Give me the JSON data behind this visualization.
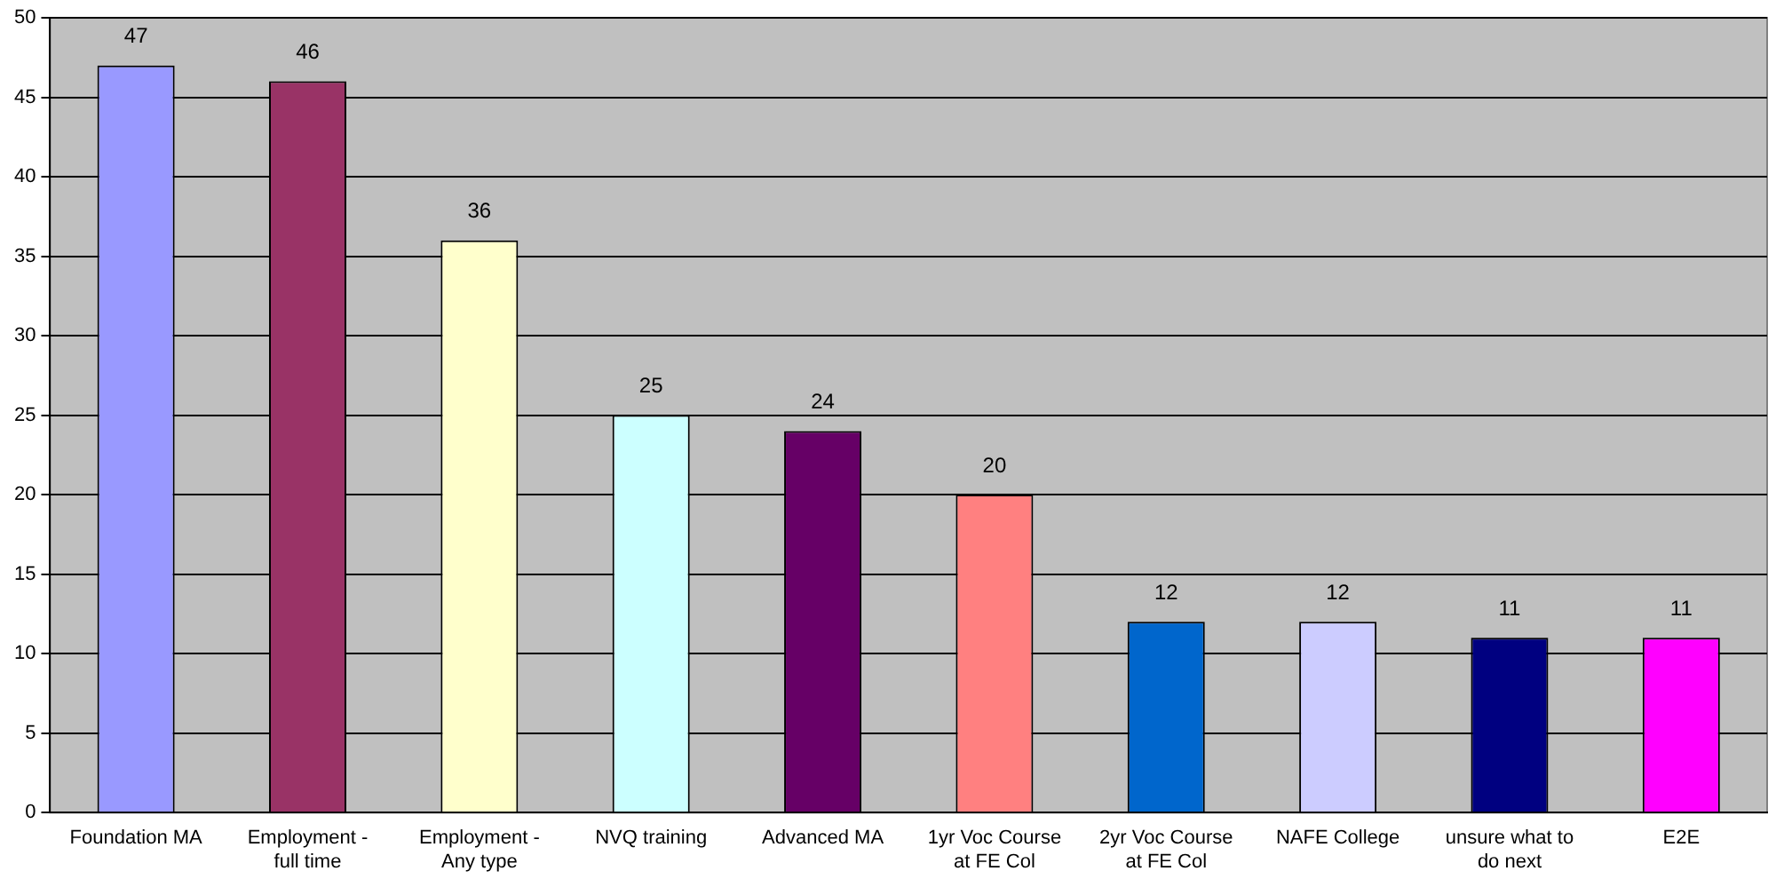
{
  "chart_data": {
    "type": "bar",
    "categories": [
      "Foundation MA",
      "Employment - full time",
      "Employment - Any type",
      "NVQ training",
      "Advanced MA",
      "1yr Voc Course at FE Col",
      "2yr Voc Course at FE Col",
      "NAFE College",
      "unsure what to do next",
      "E2E"
    ],
    "values": [
      47,
      46,
      36,
      25,
      24,
      20,
      12,
      12,
      11,
      11
    ],
    "colors": [
      "#9999ff",
      "#993366",
      "#ffffcc",
      "#ccffff",
      "#660066",
      "#ff8080",
      "#0066cc",
      "#ccccff",
      "#000080",
      "#ff00ff"
    ],
    "ylim": [
      0,
      50
    ],
    "yticks": [
      0,
      5,
      10,
      15,
      20,
      25,
      30,
      35,
      40,
      45,
      50
    ],
    "grid": "y",
    "legend": false,
    "data_labels": true
  }
}
